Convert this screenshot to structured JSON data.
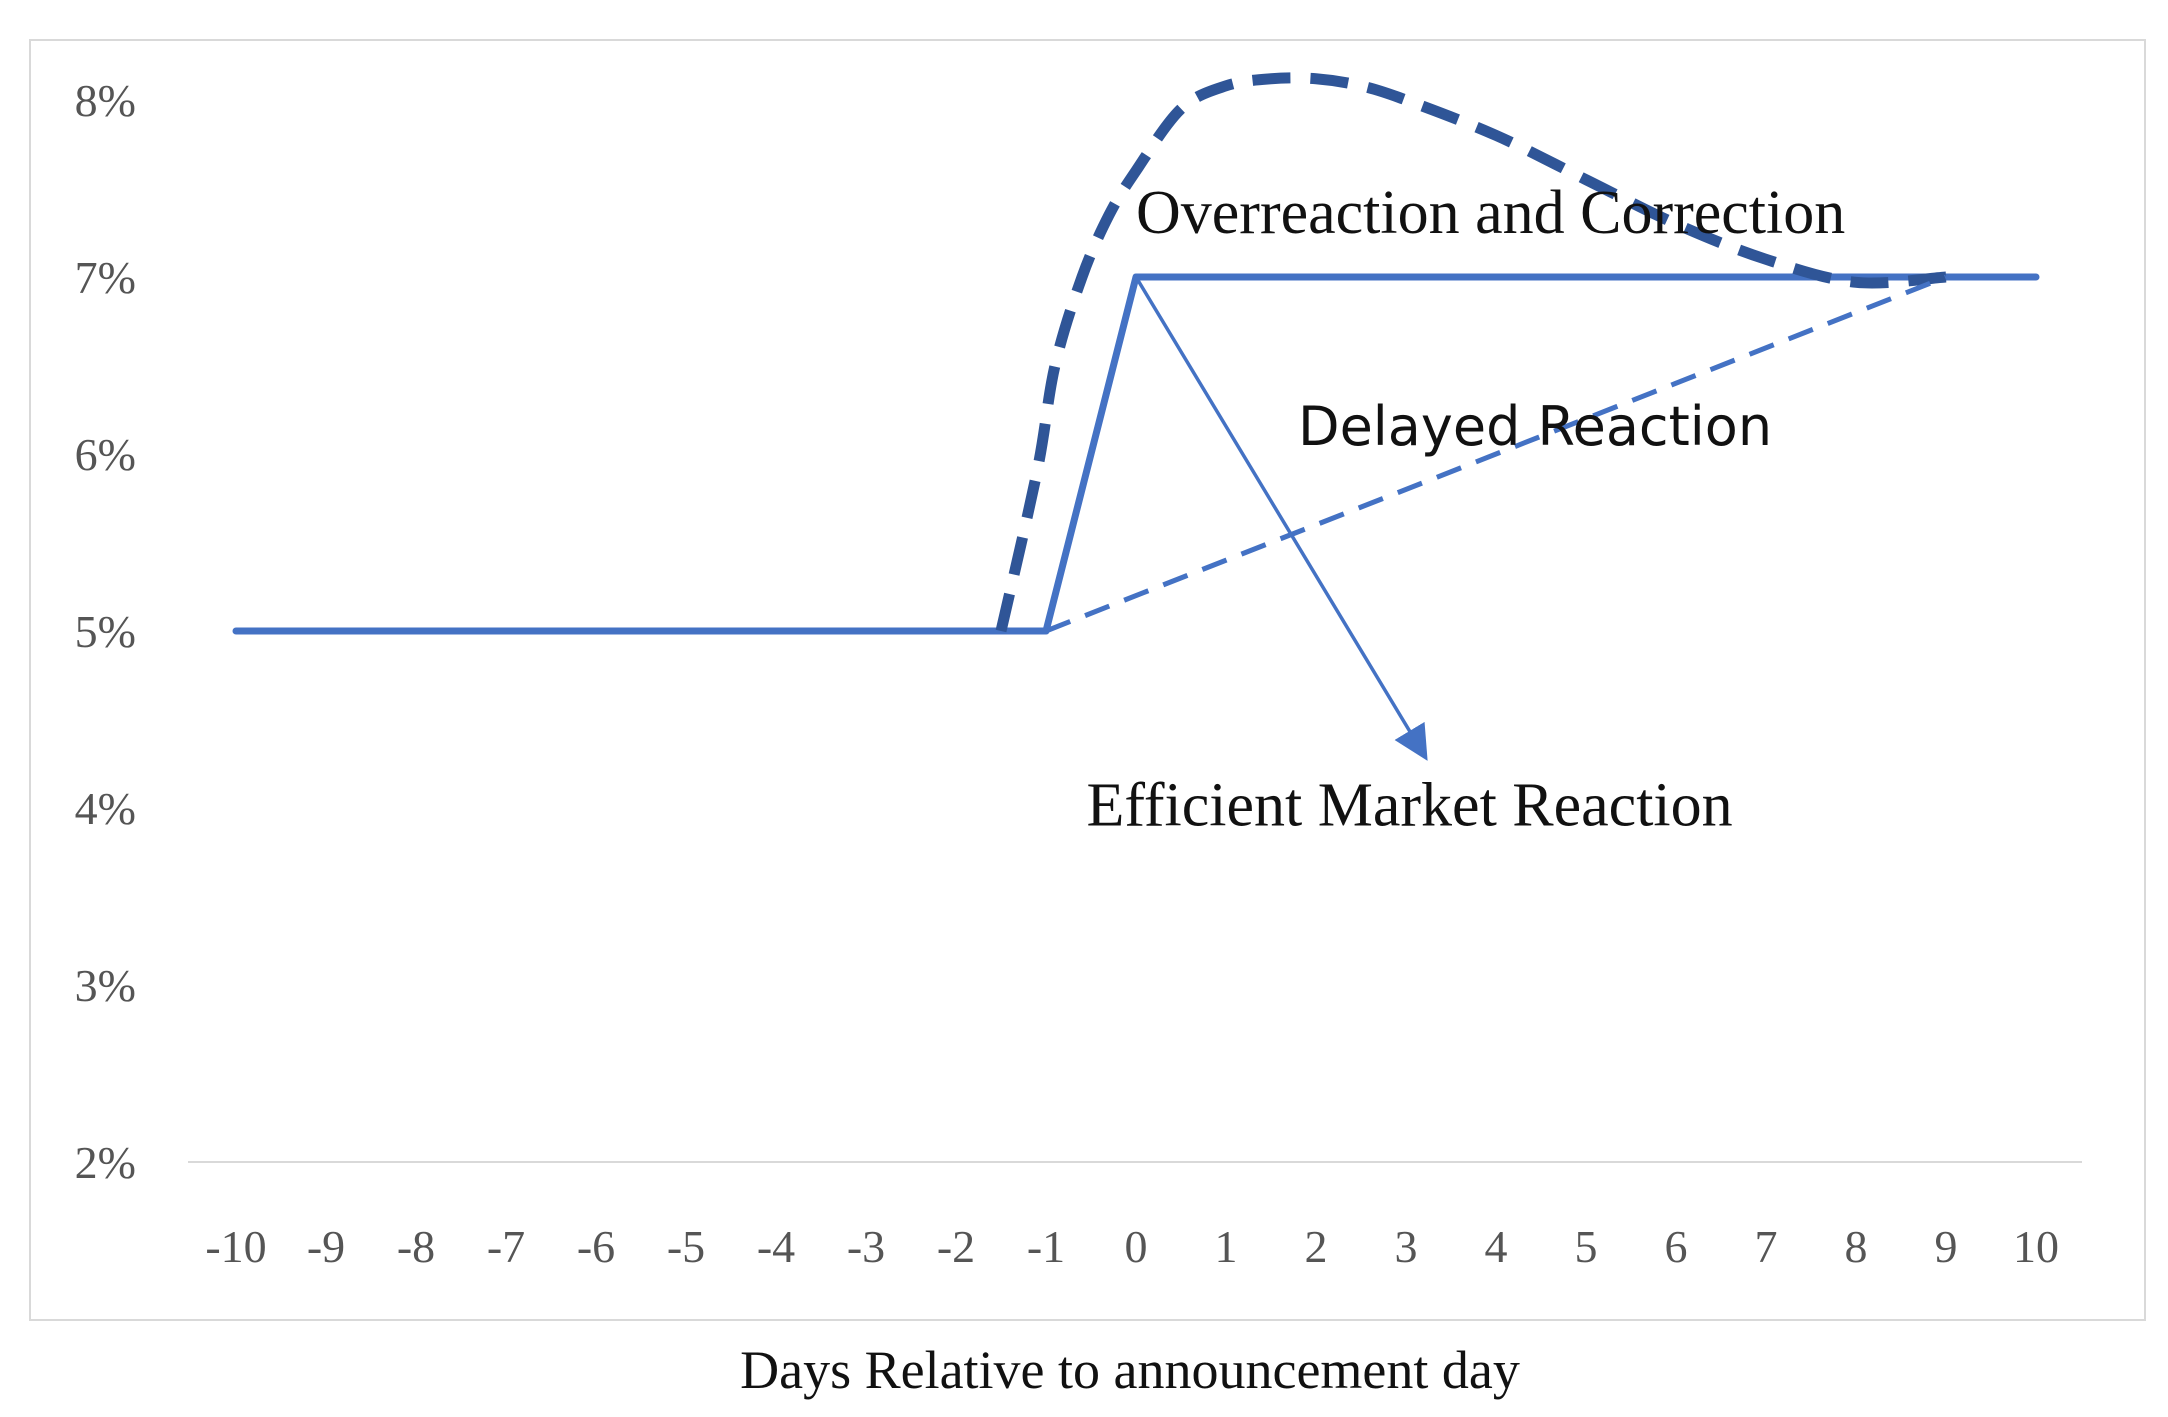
{
  "chart_data": {
    "type": "line",
    "title": "",
    "xlabel": "Days Relative to announcement day",
    "ylabel": "",
    "x": [
      -10,
      -9,
      -8,
      -7,
      -6,
      -5,
      -4,
      -3,
      -2,
      -1,
      0,
      1,
      2,
      3,
      4,
      5,
      6,
      7,
      8,
      9,
      10
    ],
    "x_tick_labels": [
      "-10",
      "-9",
      "-8",
      "-7",
      "-6",
      "-5",
      "-4",
      "-3",
      "-2",
      "-1",
      "0",
      "1",
      "2",
      "3",
      "4",
      "5",
      "6",
      "7",
      "8",
      "9",
      "10"
    ],
    "ylim": [
      2,
      8
    ],
    "y_ticks": [
      2,
      3,
      4,
      5,
      6,
      7,
      8
    ],
    "y_tick_labels": [
      "2%",
      "3%",
      "4%",
      "5%",
      "6%",
      "7%",
      "8%"
    ],
    "grid": false,
    "legend": "none",
    "series": [
      {
        "style": "solid",
        "color": "#4472C4",
        "points": [
          [
            -10,
            5
          ],
          [
            -1,
            5
          ],
          [
            0,
            7
          ],
          [
            10,
            7
          ]
        ]
      },
      {
        "style": "dashed-thick",
        "color": "#2F5597",
        "points": [
          [
            -1.5,
            5.0
          ],
          [
            -1.1,
            5.9
          ],
          [
            -0.9,
            6.5
          ],
          [
            -0.6,
            7.0
          ],
          [
            -0.3,
            7.35
          ],
          [
            0,
            7.6
          ],
          [
            0.5,
            7.95
          ],
          [
            1,
            8.08
          ],
          [
            1.5,
            8.12
          ],
          [
            2,
            8.12
          ],
          [
            2.5,
            8.08
          ],
          [
            3,
            8.0
          ],
          [
            4,
            7.8
          ],
          [
            5,
            7.55
          ],
          [
            6,
            7.3
          ],
          [
            7,
            7.1
          ],
          [
            8,
            6.97
          ],
          [
            9,
            7.0
          ]
        ]
      },
      {
        "style": "dashed",
        "color": "#4472C4",
        "points": [
          [
            -1,
            5
          ],
          [
            9,
            7
          ]
        ]
      }
    ],
    "annotations": [
      {
        "text": "Overreaction and Correction",
        "x": 0,
        "y": 7.25,
        "font": "serif"
      },
      {
        "text": "Delayed Reaction",
        "x": 1.8,
        "y": 6.05,
        "font": "sans"
      },
      {
        "text": "Efficient Market Reaction",
        "x": -0.55,
        "y": 3.9,
        "font": "serif"
      }
    ],
    "arrow": {
      "from": [
        0,
        7
      ],
      "to": [
        3.2,
        4.3
      ],
      "color": "#4472C4"
    }
  }
}
